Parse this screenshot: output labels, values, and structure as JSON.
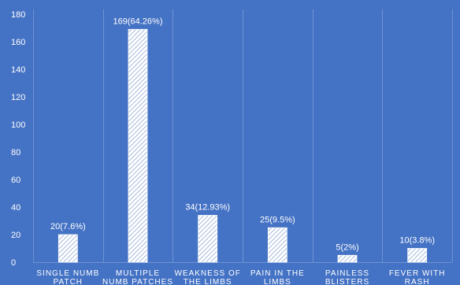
{
  "colors": {
    "background": "#4472C4",
    "gridline": "#6F93D2",
    "bar_fill": "#FFFFFF",
    "bar_hatch": "#8FA8D6",
    "text": "#FFFFFF"
  },
  "chart_data": {
    "type": "bar",
    "title": "",
    "xlabel": "",
    "ylabel": "",
    "ylim": [
      0,
      180
    ],
    "yticks": [
      0,
      20,
      40,
      60,
      80,
      100,
      120,
      140,
      160,
      180
    ],
    "grid": true,
    "grid_axis": "x",
    "legend": "none",
    "categories": [
      [
        "SINGLE NUMB",
        "PATCH"
      ],
      [
        "MULTIPLE",
        "NUMB PATCHES"
      ],
      [
        "WEAKNESS OF",
        "THE LIMBS"
      ],
      [
        "PAIN IN THE",
        "LIMBS"
      ],
      [
        "PAINLESS",
        "BLISTERS"
      ],
      [
        "FEVER WITH",
        "RASH"
      ]
    ],
    "values": [
      20,
      169,
      34,
      25,
      5,
      10
    ],
    "data_labels": [
      "20(7.6%)",
      "169(64.26%)",
      "34(12.93%)",
      "25(9.5%)",
      "5(2%)",
      "10(3.8%)"
    ]
  }
}
